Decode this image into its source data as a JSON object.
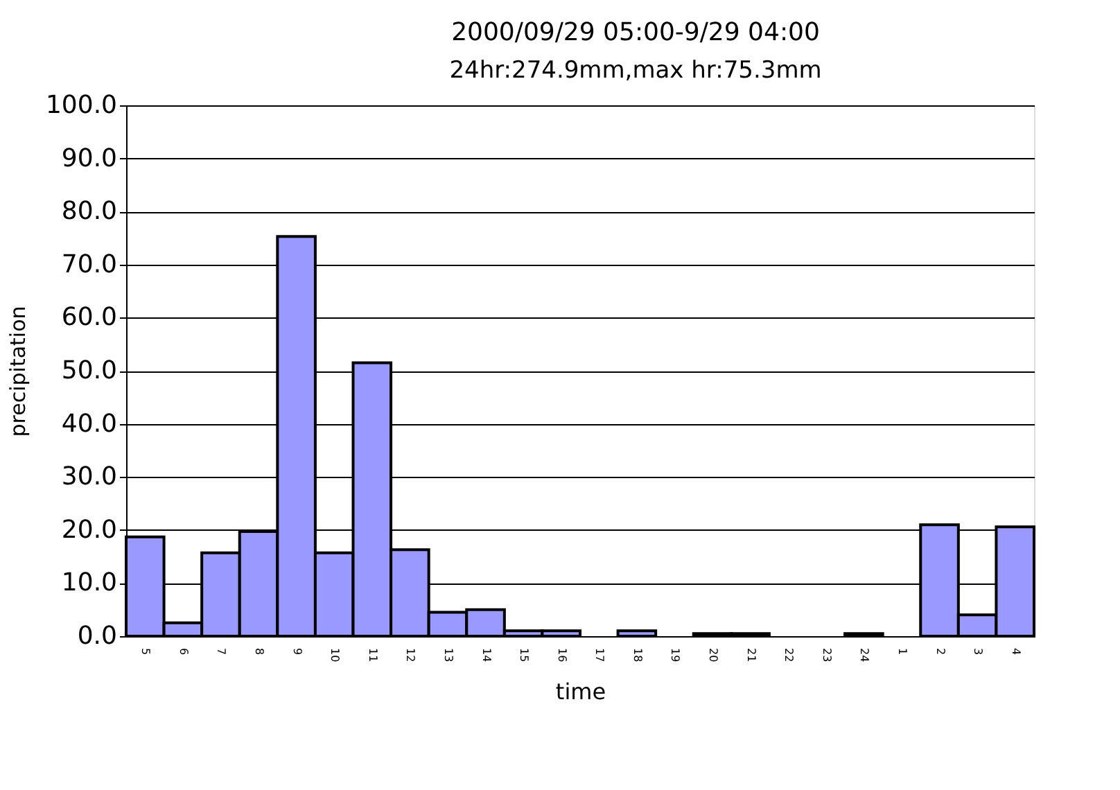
{
  "chart_data": {
    "type": "bar",
    "title": "2000/09/29 05:00-9/29 04:00",
    "subtitle": "24hr:274.9mm,max hr:75.3mm",
    "xlabel": "time",
    "ylabel": "precipitation",
    "categories": [
      "5",
      "6",
      "7",
      "8",
      "9",
      "10",
      "11",
      "12",
      "13",
      "14",
      "15",
      "16",
      "17",
      "18",
      "19",
      "20",
      "21",
      "22",
      "23",
      "24",
      "1",
      "2",
      "3",
      "4"
    ],
    "values": [
      18.7,
      2.5,
      15.7,
      19.7,
      75.3,
      15.7,
      51.5,
      16.3,
      4.5,
      5.0,
      1.0,
      1.0,
      0,
      1.0,
      0,
      0.5,
      0.5,
      0,
      0,
      0.5,
      0,
      21.0,
      4.0,
      20.6
    ],
    "color": "#9999ff",
    "ylim": [
      0,
      100
    ],
    "yticks": [
      {
        "value": 0,
        "label": "0.0"
      },
      {
        "value": 10,
        "label": "10.0"
      },
      {
        "value": 20,
        "label": "20.0"
      },
      {
        "value": 30,
        "label": "30.0"
      },
      {
        "value": 40,
        "label": "40.0"
      },
      {
        "value": 50,
        "label": "50.0"
      },
      {
        "value": 60,
        "label": "60.0"
      },
      {
        "value": 70,
        "label": "70.0"
      },
      {
        "value": 80,
        "label": "80.0"
      },
      {
        "value": 90,
        "label": "90.0"
      },
      {
        "value": 100,
        "label": "100.0"
      }
    ],
    "grid": "y"
  }
}
